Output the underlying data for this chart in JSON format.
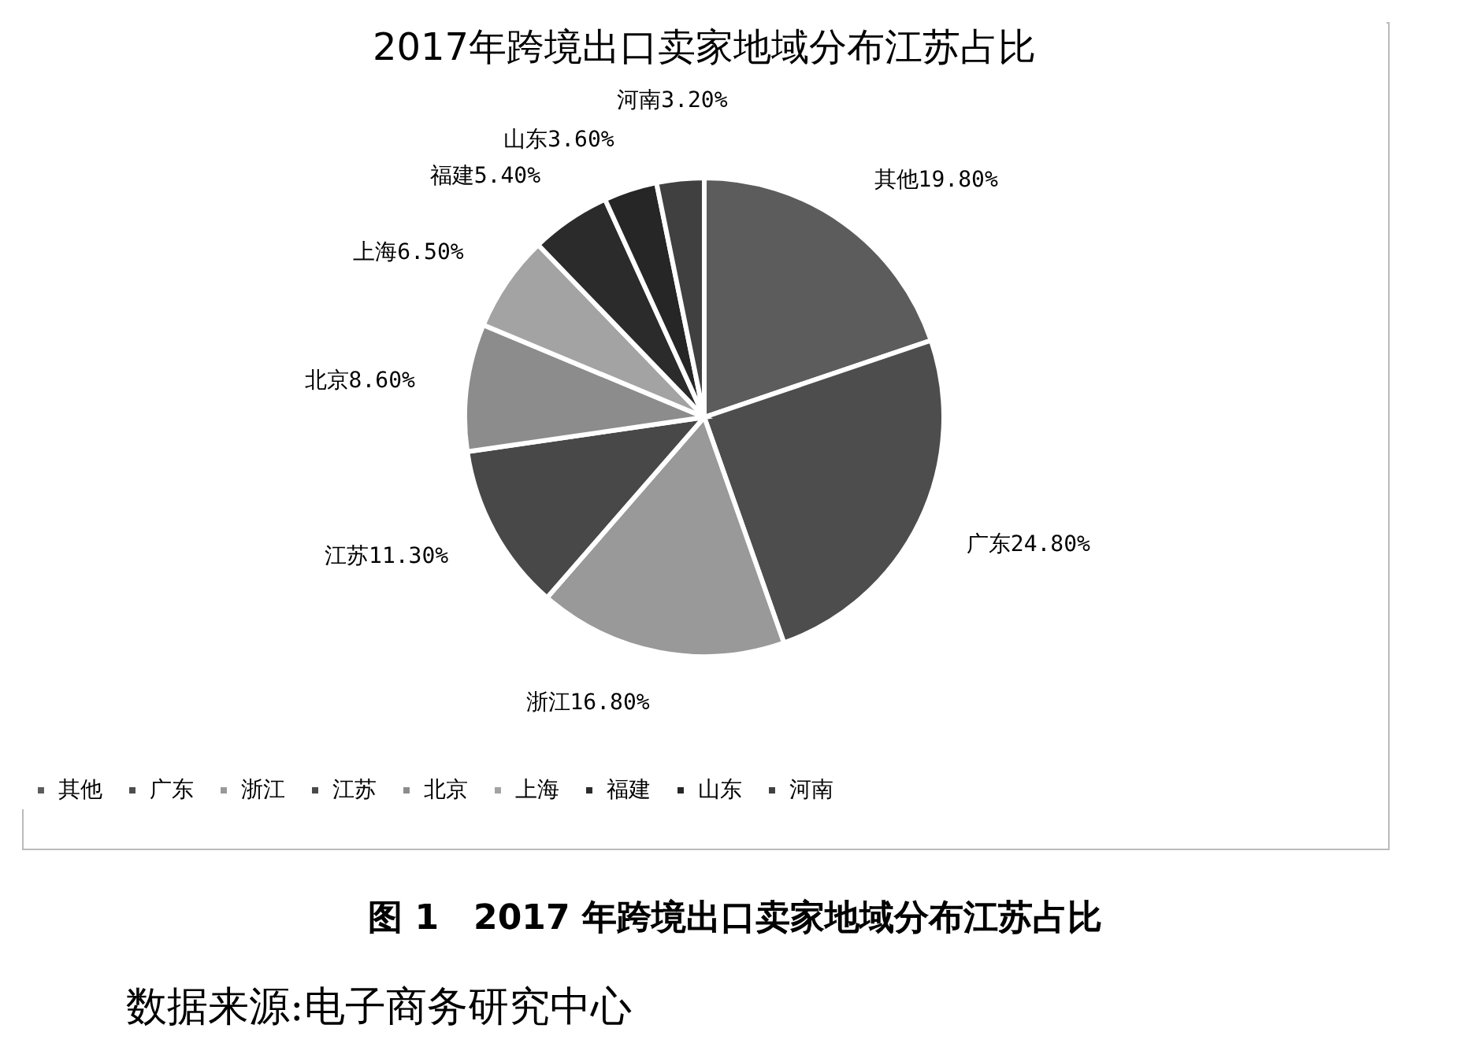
{
  "chart_data": {
    "type": "pie",
    "title": "2017年跨境出口卖家地域分布江苏占比",
    "categories": [
      "其他",
      "广东",
      "浙江",
      "江苏",
      "北京",
      "上海",
      "福建",
      "山东",
      "河南"
    ],
    "values": [
      19.8,
      24.8,
      16.8,
      11.3,
      8.6,
      6.5,
      5.4,
      3.6,
      3.2
    ],
    "colors": [
      "#5c5c5c",
      "#4d4d4d",
      "#999999",
      "#484848",
      "#8c8c8c",
      "#a3a3a3",
      "#2b2b2b",
      "#262626",
      "#404040"
    ],
    "value_labels": [
      "19.80%",
      "24.80%",
      "16.80%",
      "11.30%",
      "8.60%",
      "6.50%",
      "5.40%",
      "3.60%",
      "3.20%"
    ],
    "legend": "bottom",
    "annotations": [
      "图 1　2017 年跨境出口卖家地域分布江苏占比",
      "数据来源:电子商务研究中心"
    ]
  }
}
